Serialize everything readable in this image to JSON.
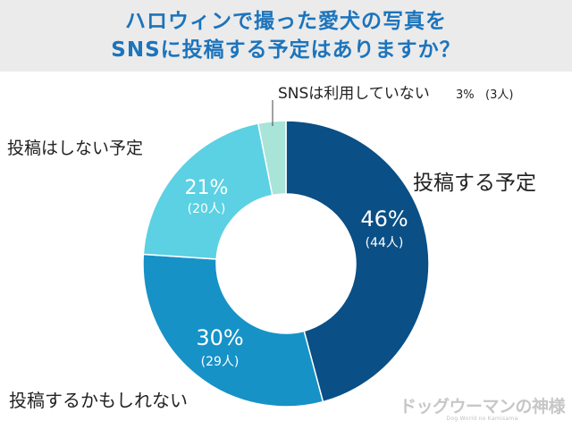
{
  "header": {
    "title_line1": "ハロウィンで撮った愛犬の写真を",
    "title_line2": "SNSに投稿する予定はありますか？"
  },
  "chart_data": {
    "type": "pie",
    "donut": true,
    "title": "ハロウィンで撮った愛犬の写真をSNSに投稿する予定はありますか？",
    "slices": [
      {
        "label": "投稿する予定",
        "percent_label": "46%",
        "count_label": "(44人)",
        "value": 44,
        "color": "#0a4f85"
      },
      {
        "label": "投稿するかもしれない",
        "percent_label": "30%",
        "count_label": "(29人)",
        "value": 29,
        "color": "#1692c7"
      },
      {
        "label": "投稿はしない予定",
        "percent_label": "21%",
        "count_label": "(20人)",
        "value": 20,
        "color": "#5bd1e3"
      },
      {
        "label": "SNSは利用していない",
        "percent_label": "3%",
        "count_label": "(3人)",
        "value": 3,
        "color": "#a8e4d7"
      }
    ]
  },
  "brand": {
    "logo_text": "ドッグウーマンの神様",
    "logo_sub": "Dog World no Kamisama"
  }
}
